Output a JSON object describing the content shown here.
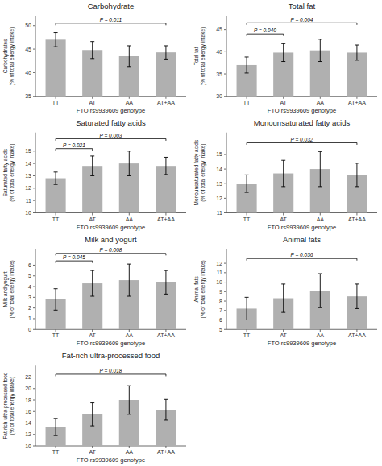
{
  "chart_data": [
    {
      "type": "bar",
      "title": "Carbohydrate",
      "ylabel": "Carbohydrates\n(% of total energy intake)",
      "xlabel": "FTO rs9939609 genotype",
      "categories": [
        "TT",
        "AT",
        "AA",
        "AT+AA"
      ],
      "values": [
        47.0,
        44.8,
        43.5,
        44.3
      ],
      "errors": [
        1.5,
        1.8,
        2.2,
        1.4
      ],
      "color": "#b0b0b0",
      "ylim": [
        35,
        52
      ],
      "yticks": [
        35,
        40,
        45,
        50
      ],
      "grid": false,
      "annotations": [
        {
          "x1": "TT",
          "x2": "AT+AA",
          "y": 50.5,
          "text": "P = 0.011"
        }
      ]
    },
    {
      "type": "bar",
      "title": "Total fat",
      "ylabel": "Total fat\n(% of total energy intake)",
      "xlabel": "FTO rs9939609 genotype",
      "categories": [
        "TT",
        "AT",
        "AA",
        "AT+AA"
      ],
      "values": [
        37.0,
        39.8,
        40.3,
        39.8
      ],
      "errors": [
        1.8,
        2.0,
        2.5,
        1.7
      ],
      "color": "#b0b0b0",
      "ylim": [
        30,
        48
      ],
      "yticks": [
        30,
        35,
        40,
        45
      ],
      "grid": false,
      "annotations": [
        {
          "x1": "TT",
          "x2": "AT",
          "y": 44.0,
          "text": "P = 0.040"
        },
        {
          "x1": "TT",
          "x2": "AT+AA",
          "y": 46.5,
          "text": "P = 0.004"
        }
      ]
    },
    {
      "type": "bar",
      "title": "Saturated fatty acids",
      "ylabel": "Saturated fatty acids\n(% of total energy intake)",
      "xlabel": "FTO rs9939609 genotype",
      "categories": [
        "TT",
        "AT",
        "AA",
        "AT+AA"
      ],
      "values": [
        12.8,
        13.8,
        14.0,
        13.8
      ],
      "errors": [
        0.5,
        0.8,
        1.0,
        0.7
      ],
      "color": "#b0b0b0",
      "ylim": [
        10,
        16.5
      ],
      "yticks": [
        10,
        11,
        12,
        13,
        14,
        15
      ],
      "grid": false,
      "annotations": [
        {
          "x1": "TT",
          "x2": "AT",
          "y": 15.2,
          "text": "P = 0.021"
        },
        {
          "x1": "TT",
          "x2": "AT+AA",
          "y": 16.0,
          "text": "P = 0.003"
        }
      ]
    },
    {
      "type": "bar",
      "title": "Monounsaturated fatty acids",
      "ylabel": "Monounsaturated fatty acids\n(% of total energy intake)",
      "xlabel": "FTO rs9939609 genotype",
      "categories": [
        "TT",
        "AT",
        "AA",
        "AT+AA"
      ],
      "values": [
        13.0,
        13.7,
        14.0,
        13.6
      ],
      "errors": [
        0.6,
        0.9,
        1.2,
        0.8
      ],
      "color": "#b0b0b0",
      "ylim": [
        11,
        16.5
      ],
      "yticks": [
        11,
        12,
        13,
        14,
        15
      ],
      "grid": false,
      "annotations": [
        {
          "x1": "TT",
          "x2": "AT+AA",
          "y": 15.8,
          "text": "P = 0.032"
        }
      ]
    },
    {
      "type": "bar",
      "title": "Milk and yogurt",
      "ylabel": "Milk and yogurt\n(% of total energy intake)",
      "xlabel": "FTO rs9939609 genotype",
      "categories": [
        "TT",
        "AT",
        "AA",
        "AT+AA"
      ],
      "values": [
        2.8,
        4.3,
        4.6,
        4.4
      ],
      "errors": [
        1.0,
        1.2,
        1.5,
        1.1
      ],
      "color": "#b0b0b0",
      "ylim": [
        0,
        7.5
      ],
      "yticks": [
        0,
        1,
        2,
        3,
        4,
        5,
        6
      ],
      "grid": false,
      "annotations": [
        {
          "x1": "TT",
          "x2": "AT",
          "y": 6.4,
          "text": "P = 0.045"
        },
        {
          "x1": "TT",
          "x2": "AT+AA",
          "y": 7.1,
          "text": "P = 0.008"
        }
      ]
    },
    {
      "type": "bar",
      "title": "Animal fats",
      "ylabel": "Animal fats\n(% of total energy intake)",
      "xlabel": "FTO rs9939609 genotype",
      "categories": [
        "TT",
        "AT",
        "AA",
        "AT+AA"
      ],
      "values": [
        7.2,
        8.3,
        9.1,
        8.5
      ],
      "errors": [
        1.2,
        1.5,
        1.8,
        1.3
      ],
      "color": "#b0b0b0",
      "ylim": [
        5,
        13.5
      ],
      "yticks": [
        5,
        6,
        7,
        8,
        9,
        10,
        11,
        12
      ],
      "grid": false,
      "annotations": [
        {
          "x1": "TT",
          "x2": "AT+AA",
          "y": 12.5,
          "text": "P = 0.036"
        }
      ]
    },
    {
      "type": "bar",
      "title": "Fat-rich ultra-processed food",
      "ylabel": "Fat-rich ultra-processed food\n(% of total energy intake)",
      "xlabel": "FTO rs9939609 genotype",
      "categories": [
        "TT",
        "AT",
        "AA",
        "AT+AA"
      ],
      "values": [
        13.3,
        15.5,
        18.0,
        16.3
      ],
      "errors": [
        1.5,
        2.0,
        2.5,
        1.8
      ],
      "color": "#b0b0b0",
      "ylim": [
        10,
        24
      ],
      "yticks": [
        10,
        12,
        14,
        16,
        18,
        20,
        22
      ],
      "grid": false,
      "annotations": [
        {
          "x1": "TT",
          "x2": "AT+AA",
          "y": 22.5,
          "text": "P = 0.018"
        }
      ]
    }
  ]
}
